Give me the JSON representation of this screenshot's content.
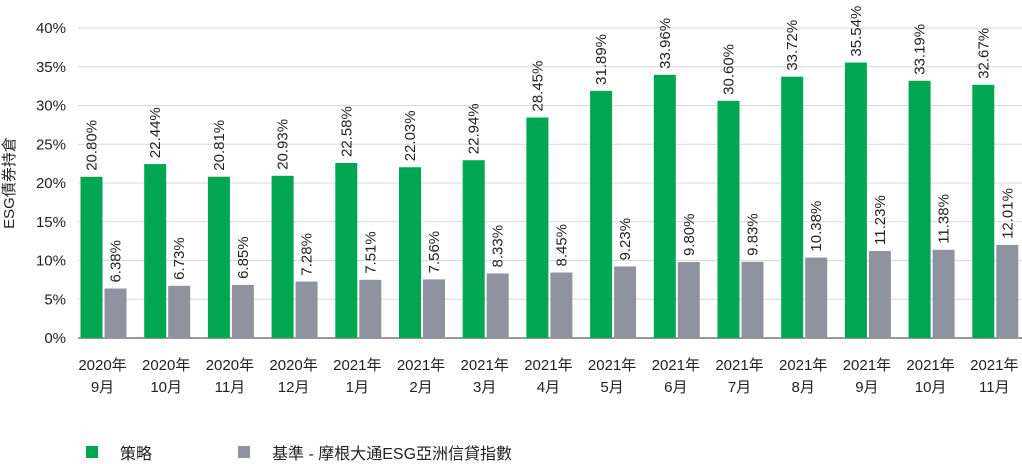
{
  "colors": {
    "strategy": "#00A651",
    "benchmark": "#8F93A0",
    "grid": "#D9D9D9",
    "axis": "#333333"
  },
  "legend": {
    "strategy": "策略",
    "benchmark": "基準 - 摩根大通ESG亞洲信貸指數"
  },
  "chart_data": {
    "type": "bar",
    "ylabel": "ESG債券持倉",
    "ylim": [
      0,
      40
    ],
    "yticks": [
      {
        "value": 0,
        "label": "0%"
      },
      {
        "value": 5,
        "label": "5%"
      },
      {
        "value": 10,
        "label": "10%"
      },
      {
        "value": 15,
        "label": "15%"
      },
      {
        "value": 20,
        "label": "20%"
      },
      {
        "value": 25,
        "label": "25%"
      },
      {
        "value": 30,
        "label": "30%"
      },
      {
        "value": 35,
        "label": "35%"
      },
      {
        "value": 40,
        "label": "40%"
      }
    ],
    "grid": true,
    "legend_position": "bottom-left",
    "categories": [
      {
        "year": "2020年",
        "month": "9月"
      },
      {
        "year": "2020年",
        "month": "10月"
      },
      {
        "year": "2020年",
        "month": "11月"
      },
      {
        "year": "2020年",
        "month": "12月"
      },
      {
        "year": "2021年",
        "month": "1月"
      },
      {
        "year": "2021年",
        "month": "2月"
      },
      {
        "year": "2021年",
        "month": "3月"
      },
      {
        "year": "2021年",
        "month": "4月"
      },
      {
        "year": "2021年",
        "month": "5月"
      },
      {
        "year": "2021年",
        "month": "6月"
      },
      {
        "year": "2021年",
        "month": "7月"
      },
      {
        "year": "2021年",
        "month": "8月"
      },
      {
        "year": "2021年",
        "month": "9月"
      },
      {
        "year": "2021年",
        "month": "10月"
      },
      {
        "year": "2021年",
        "month": "11月"
      }
    ],
    "series": [
      {
        "name": "策略",
        "values": [
          20.8,
          22.44,
          20.81,
          20.93,
          22.58,
          22.03,
          22.94,
          28.45,
          31.89,
          33.96,
          30.6,
          33.72,
          35.54,
          33.19,
          32.67
        ],
        "labels": [
          "20.80%",
          "22.44%",
          "20.81%",
          "20.93%",
          "22.58%",
          "22.03%",
          "22.94%",
          "28.45%",
          "31.89%",
          "33.96%",
          "30.60%",
          "33.72%",
          "35.54%",
          "33.19%",
          "32.67%"
        ]
      },
      {
        "name": "基準 - 摩根大通ESG亞洲信貸指數",
        "values": [
          6.38,
          6.73,
          6.85,
          7.28,
          7.51,
          7.56,
          8.33,
          8.45,
          9.23,
          9.8,
          9.83,
          10.38,
          11.23,
          11.38,
          12.01
        ],
        "labels": [
          "6.38%",
          "6.73%",
          "6.85%",
          "7.28%",
          "7.51%",
          "7.56%",
          "8.33%",
          "8.45%",
          "9.23%",
          "9.80%",
          "9.83%",
          "10.38%",
          "11.23%",
          "11.38%",
          "12.01%"
        ]
      }
    ]
  }
}
